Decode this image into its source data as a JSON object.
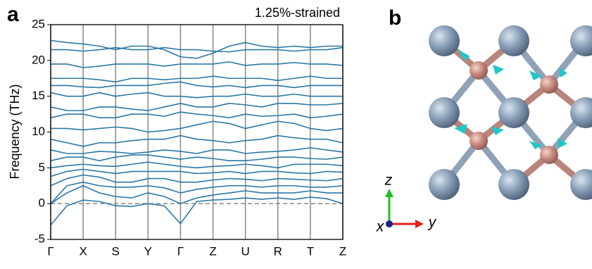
{
  "chart_data": {
    "type": "line",
    "panel_label": "a",
    "annotation": "1.25%-strained",
    "y_label": "Frequency (THz)",
    "x": [
      0,
      0.5,
      1,
      1.5,
      2,
      2.5,
      3,
      3.5,
      4,
      4.5,
      5,
      5.5,
      6,
      6.5,
      7,
      7.5,
      8,
      8.5,
      9
    ],
    "xlim": [
      0,
      9
    ],
    "xticks": [
      {
        "value": 0,
        "label": "Γ"
      },
      {
        "value": 1,
        "label": "X"
      },
      {
        "value": 2,
        "label": "S"
      },
      {
        "value": 3,
        "label": "Y"
      },
      {
        "value": 4,
        "label": "Γ"
      },
      {
        "value": 5,
        "label": "Z"
      },
      {
        "value": 6,
        "label": "U"
      },
      {
        "value": 7,
        "label": "R"
      },
      {
        "value": 8,
        "label": "T"
      },
      {
        "value": 9,
        "label": "Z"
      }
    ],
    "ylim": [
      -5,
      25
    ],
    "yticks": [
      -5,
      0,
      5,
      10,
      15,
      20,
      25
    ],
    "hlines": [
      0
    ],
    "vertical_grid": true,
    "series": [
      {
        "color": "#2b78a8",
        "values": [
          -3,
          -0.3,
          0.5,
          0.3,
          -0.3,
          -0.4,
          0,
          -0.3,
          -2.8,
          0.3,
          0.5,
          0.6,
          0.8,
          0.6,
          0.8,
          0.6,
          0.9,
          0.7,
          0
        ]
      },
      {
        "color": "#2b78a8",
        "values": [
          0,
          1.5,
          2.5,
          1.5,
          1,
          0.8,
          1.5,
          1,
          0,
          0.8,
          1.2,
          1.5,
          1.8,
          1.5,
          1.5,
          1.5,
          1.8,
          1.5,
          1.5
        ]
      },
      {
        "color": "#2b78a8",
        "values": [
          0,
          2.5,
          3,
          2.5,
          2.3,
          2.3,
          2.5,
          2.2,
          1.5,
          2,
          2.3,
          2.5,
          2.5,
          2.3,
          2.5,
          2.5,
          2.3,
          2.3,
          2.5
        ]
      },
      {
        "color": "#2b78a8",
        "values": [
          2.5,
          3.5,
          4,
          3.7,
          3,
          3,
          3.5,
          3.5,
          3,
          3,
          3.3,
          3.5,
          3.4,
          3.2,
          3.5,
          3.4,
          3.3,
          3.2,
          3.5
        ]
      },
      {
        "color": "#2b78a8",
        "values": [
          3.8,
          4.5,
          4.8,
          4.5,
          4.2,
          4.5,
          4.5,
          4.5,
          4.5,
          4.2,
          4.3,
          4.5,
          4.2,
          4.5,
          4.5,
          4.3,
          4.2,
          4.5,
          4.4
        ]
      },
      {
        "color": "#2b78a8",
        "values": [
          5,
          5.3,
          5.5,
          5.3,
          5.2,
          5.5,
          5.8,
          5.5,
          5.2,
          5,
          5.2,
          5.3,
          5.5,
          5.3,
          5,
          5.5,
          5.5,
          5.5,
          5.3
        ]
      },
      {
        "color": "#2b78a8",
        "values": [
          6,
          6.5,
          6.5,
          6,
          6.5,
          6.8,
          6.8,
          6.5,
          6.2,
          6.5,
          6.3,
          6,
          6,
          6.2,
          6.5,
          6.5,
          6.3,
          6.2,
          6.5
        ]
      },
      {
        "color": "#2b78a8",
        "values": [
          7.5,
          7,
          7,
          7.3,
          7.2,
          7,
          7.2,
          7.5,
          7.3,
          7,
          7.5,
          7.5,
          7,
          7.2,
          7.3,
          7.5,
          7.8,
          7.5,
          7.2
        ]
      },
      {
        "color": "#2b78a8",
        "values": [
          9,
          8.5,
          8,
          8.5,
          8.5,
          8.8,
          9,
          9,
          9.5,
          9,
          8.8,
          8.5,
          8.8,
          9,
          9.5,
          9.2,
          9,
          9,
          8.5
        ]
      },
      {
        "color": "#2b78a8",
        "values": [
          10.5,
          10.5,
          10.3,
          10.5,
          10.7,
          10.5,
          10,
          10.2,
          10.5,
          11,
          11.5,
          11.2,
          10.5,
          11,
          11.5,
          11.2,
          10.5,
          10.2,
          10.5
        ]
      },
      {
        "color": "#2b78a8",
        "values": [
          12,
          12.5,
          12.5,
          12,
          12,
          12.5,
          12.5,
          12.2,
          12.8,
          12.5,
          12.3,
          12,
          12.5,
          12.2,
          12.3,
          12.5,
          12,
          12.2,
          12.5
        ]
      },
      {
        "color": "#2b78a8",
        "values": [
          13.5,
          13,
          13,
          13.5,
          13.5,
          13.2,
          13,
          13.5,
          14,
          13.5,
          13.5,
          14,
          13.8,
          13.5,
          14,
          14,
          13.8,
          13.8,
          14
        ]
      },
      {
        "color": "#2b78a8",
        "values": [
          15.5,
          15,
          15,
          15.5,
          15,
          15.3,
          15.5,
          15,
          15,
          14.8,
          15,
          15,
          15.3,
          15,
          15,
          15.3,
          15,
          15,
          15
        ]
      },
      {
        "color": "#2b78a8",
        "values": [
          16.5,
          16.5,
          16.3,
          16.2,
          16.5,
          16.5,
          16.5,
          16.8,
          17,
          16.5,
          16.3,
          16.5,
          16.2,
          16.5,
          16.5,
          16.2,
          16.5,
          16.5,
          16.5
        ]
      },
      {
        "color": "#2b78a8",
        "values": [
          17.5,
          17.5,
          17.5,
          17.3,
          17,
          17.5,
          17.5,
          17.3,
          17.5,
          17.5,
          17.8,
          17.5,
          17.5,
          17.5,
          17.2,
          17.5,
          17.8,
          17.5,
          17.5
        ]
      },
      {
        "color": "#2b78a8",
        "values": [
          19.5,
          19.5,
          19,
          19.2,
          19.5,
          19.5,
          19.5,
          19.2,
          19.5,
          19.5,
          19.5,
          19.8,
          19.3,
          19.5,
          19.5,
          19.7,
          19.5,
          19.5,
          19.3
        ]
      },
      {
        "color": "#2b78a8",
        "values": [
          21.5,
          21.5,
          21.3,
          21.5,
          21.8,
          21.5,
          21.5,
          21.8,
          21.5,
          21.5,
          21.3,
          21.2,
          21.5,
          21.5,
          21.5,
          21.3,
          21.5,
          21.5,
          21.8
        ]
      },
      {
        "color": "#2b78a8",
        "values": [
          22.8,
          22.5,
          22.3,
          22,
          21.5,
          22,
          22,
          21.5,
          20.5,
          20.3,
          21,
          22,
          22.5,
          22,
          21.8,
          22,
          21.8,
          22,
          22
        ]
      }
    ]
  },
  "structure": {
    "panel_label": "b",
    "axis_z": "z",
    "axis_x": "x",
    "axis_y": "y"
  }
}
